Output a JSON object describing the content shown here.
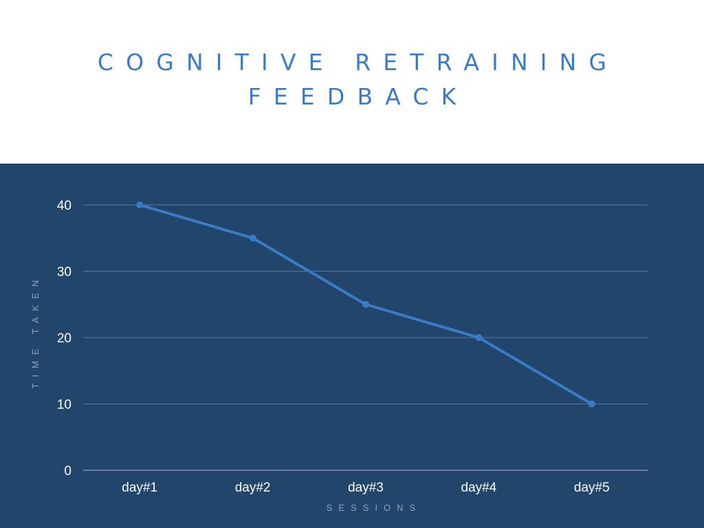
{
  "header": {
    "title_line1": "COGNITIVE RETRAINING",
    "title_line2": "FEEDBACK"
  },
  "colors": {
    "title": "#3a7bc8",
    "panel_background": "#22456b",
    "series": "#3a7bc8",
    "gridline": "#5b7898",
    "axis_title": "#8fa3bb",
    "tick_label": "#ffffff"
  },
  "chart_data": {
    "type": "line",
    "title": "COGNITIVE RETRAINING FEEDBACK",
    "xlabel": "SESSIONS",
    "ylabel": "TIME TAKEN",
    "categories": [
      "day#1",
      "day#2",
      "day#3",
      "day#4",
      "day#5"
    ],
    "series": [
      {
        "values": [
          40,
          35,
          25,
          20,
          10
        ]
      }
    ],
    "yticks": [
      0,
      10,
      20,
      30,
      40
    ],
    "ylim": [
      0,
      40
    ],
    "grid": true,
    "legend": "none"
  }
}
